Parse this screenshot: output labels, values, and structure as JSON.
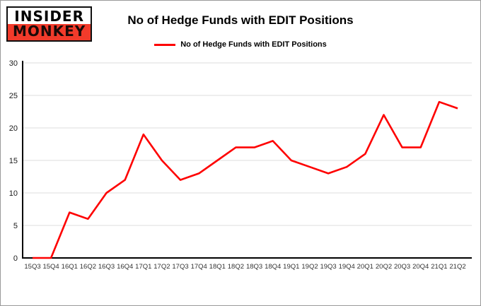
{
  "logo": {
    "line1": "INSIDER",
    "line2": "MONKEY",
    "bg_color": "#f23b2b"
  },
  "chart_data": {
    "type": "line",
    "title": "No of Hedge Funds with EDIT Positions",
    "series_name": "No of Hedge Funds with EDIT Positions",
    "categories": [
      "15Q3",
      "15Q4",
      "16Q1",
      "16Q2",
      "16Q3",
      "16Q4",
      "17Q1",
      "17Q2",
      "17Q3",
      "17Q4",
      "18Q1",
      "18Q2",
      "18Q3",
      "18Q4",
      "19Q1",
      "19Q2",
      "19Q3",
      "19Q4",
      "20Q1",
      "20Q2",
      "20Q3",
      "20Q4",
      "21Q1",
      "21Q2"
    ],
    "values": [
      0,
      0,
      7,
      6,
      10,
      12,
      19,
      15,
      12,
      13,
      15,
      17,
      17,
      18,
      15,
      14,
      13,
      14,
      16,
      22,
      17,
      17,
      24,
      23
    ],
    "xlabel": "",
    "ylabel": "",
    "ylim": [
      0,
      30
    ],
    "yticks": [
      0,
      5,
      10,
      15,
      20,
      25,
      30
    ],
    "grid": true,
    "legend_position": "top-center",
    "line_color": "#fe0000",
    "grid_color": "#dcdcdc",
    "axis_color": "#000000",
    "background": "#ffffff"
  }
}
